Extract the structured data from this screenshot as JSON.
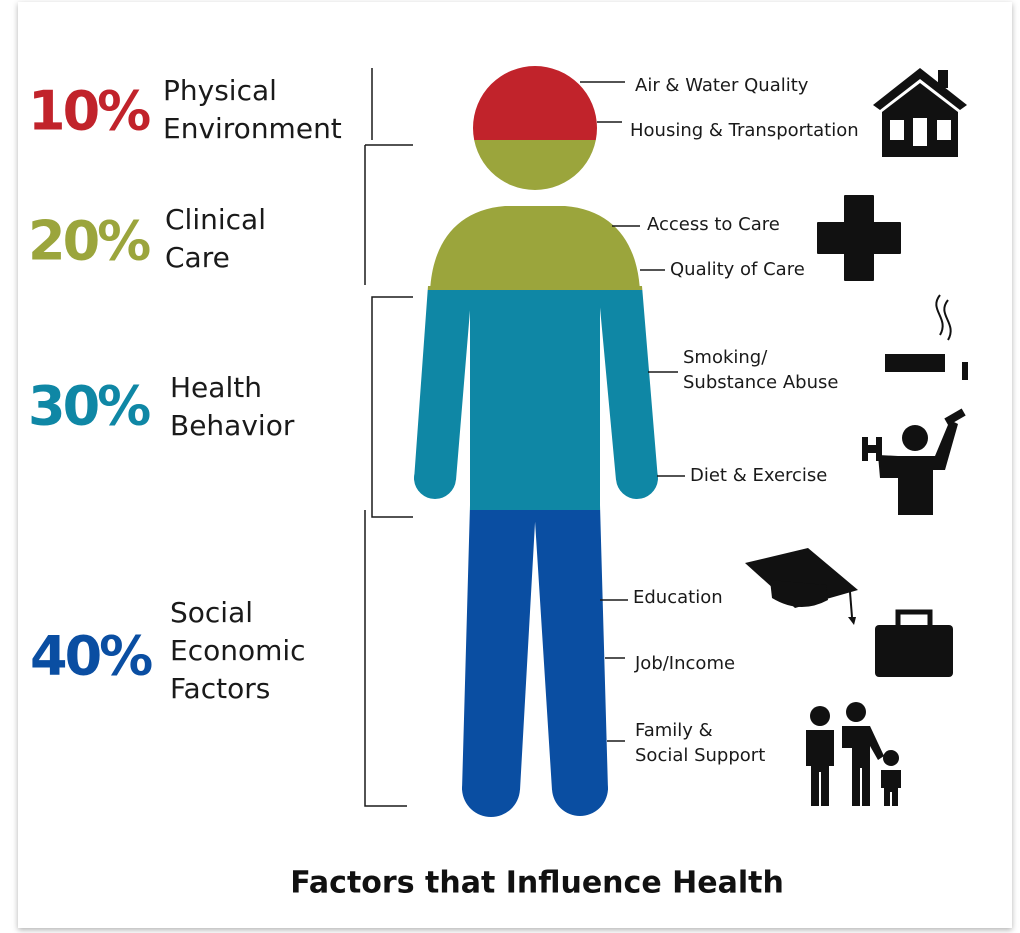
{
  "title": "Factors that Influence Health",
  "factors": [
    {
      "percent": "10%",
      "color": "#c1232b",
      "label": [
        "Physical",
        "Environment"
      ],
      "items": [
        [
          "Air & Water Quality"
        ],
        [
          "Housing & Transportation"
        ]
      ]
    },
    {
      "percent": "20%",
      "color": "#9ba53c",
      "label": [
        "Clinical",
        "Care"
      ],
      "items": [
        [
          "Access to Care"
        ],
        [
          "Quality of Care"
        ]
      ]
    },
    {
      "percent": "30%",
      "color": "#0f87a5",
      "label": [
        "Health",
        "Behavior"
      ],
      "items": [
        [
          "Smoking/",
          "Substance Abuse"
        ],
        [
          "Diet & Exercise"
        ]
      ]
    },
    {
      "percent": "40%",
      "color": "#0a4ea2",
      "label": [
        "Social",
        "Economic",
        "Factors"
      ],
      "items": [
        [
          "Education"
        ],
        [
          "Job/Income"
        ],
        [
          "Family &",
          "Social Support"
        ]
      ]
    }
  ]
}
